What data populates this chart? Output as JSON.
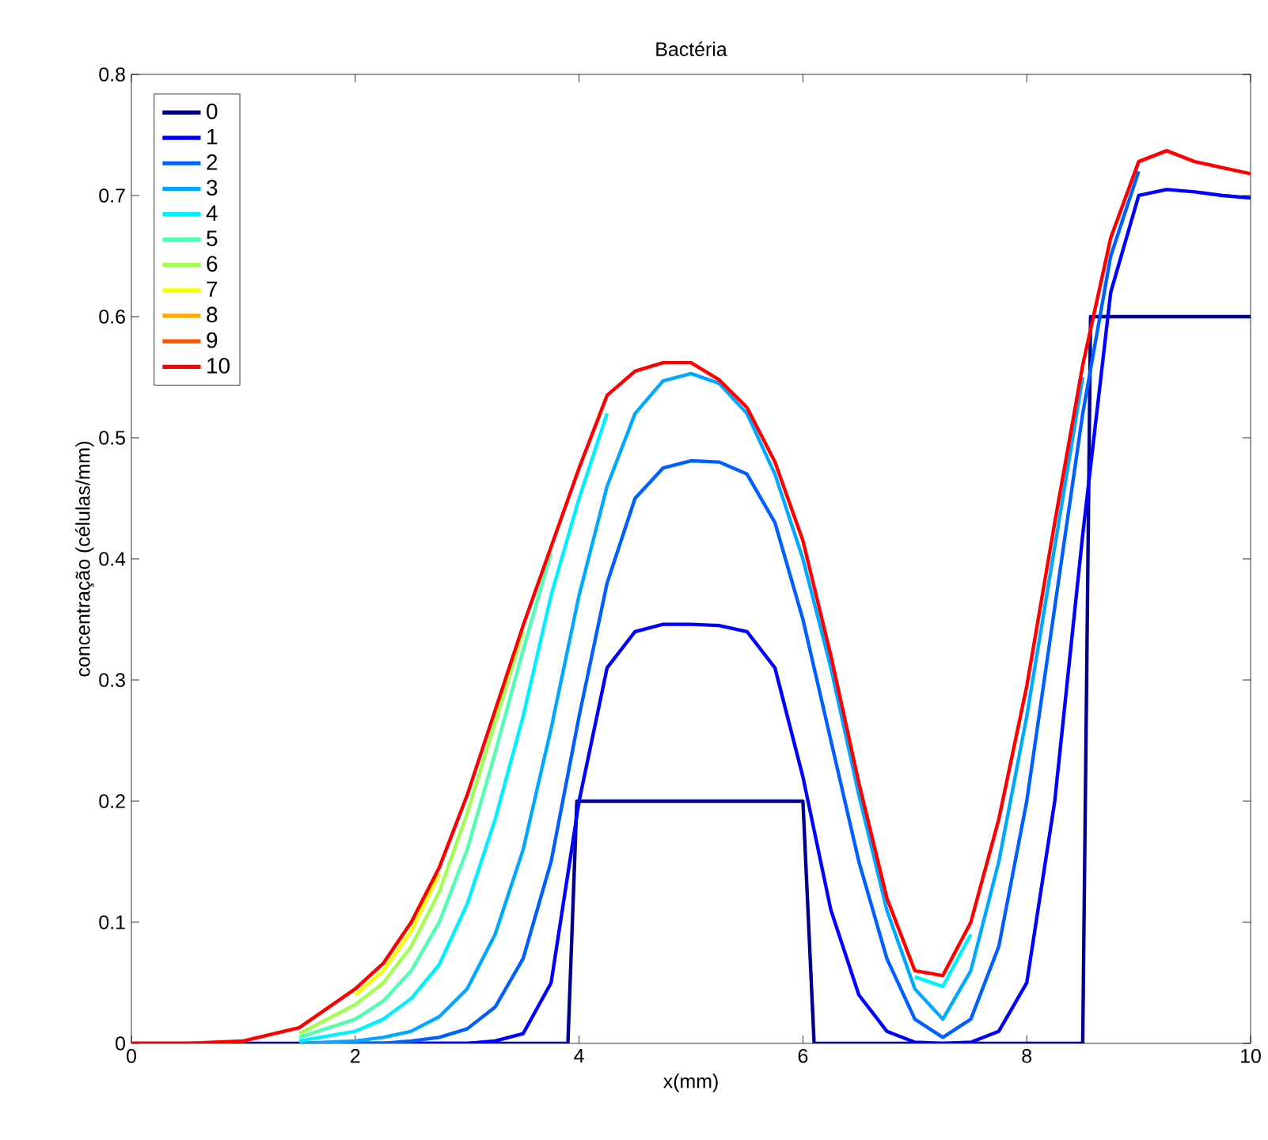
{
  "chart_data": {
    "type": "line",
    "title": "Bactéria",
    "xlabel": "x(mm)",
    "ylabel": "concentração (células/mm)",
    "xlim": [
      0,
      10
    ],
    "ylim": [
      0,
      0.8
    ],
    "xticks": [
      0,
      2,
      4,
      6,
      8,
      10
    ],
    "yticks": [
      0,
      0.1,
      0.2,
      0.3,
      0.4,
      0.5,
      0.6,
      0.7,
      0.8
    ],
    "legend": "top left",
    "grid": false,
    "x": [
      0,
      0.5,
      1,
      1.5,
      2,
      2.25,
      2.5,
      2.75,
      3,
      3.25,
      3.5,
      3.75,
      4,
      4.25,
      4.5,
      4.75,
      5,
      5.25,
      5.5,
      5.75,
      6,
      6.25,
      6.5,
      6.75,
      7,
      7.25,
      7.5,
      7.75,
      8,
      8.25,
      8.5,
      8.75,
      9,
      9.25,
      9.5,
      9.75,
      10
    ],
    "series": [
      {
        "name": "0",
        "color": "#00008f",
        "x": [
          0,
          3.9,
          3.98,
          6.0,
          6.1,
          8.5,
          8.57,
          10
        ],
        "values": [
          0,
          0,
          0.2,
          0.2,
          0,
          0,
          0.6,
          0.6
        ]
      },
      {
        "name": "1",
        "color": "#0000ff",
        "values": [
          null,
          null,
          null,
          0,
          0,
          0,
          0,
          0,
          0,
          0.002,
          0.008,
          0.05,
          0.2,
          0.31,
          0.34,
          0.346,
          0.346,
          0.345,
          0.34,
          0.31,
          0.22,
          0.11,
          0.04,
          0.01,
          0.001,
          0,
          0.001,
          0.01,
          0.05,
          0.2,
          0.42,
          0.62,
          0.7,
          0.705,
          0.703,
          0.7,
          0.698
        ]
      },
      {
        "name": "2",
        "color": "#0060ff",
        "values": [
          null,
          null,
          null,
          0,
          0,
          0,
          0.002,
          0.005,
          0.012,
          0.03,
          0.07,
          0.15,
          0.27,
          0.38,
          0.45,
          0.475,
          0.481,
          0.48,
          0.47,
          0.43,
          0.35,
          0.25,
          0.15,
          0.07,
          0.02,
          0.005,
          0.02,
          0.08,
          0.2,
          0.36,
          0.52,
          0.65,
          0.72,
          null,
          null,
          null,
          null
        ]
      },
      {
        "name": "3",
        "color": "#00a8ff",
        "values": [
          null,
          null,
          null,
          0,
          0.002,
          0.005,
          0.01,
          0.022,
          0.045,
          0.09,
          0.16,
          0.26,
          0.37,
          0.46,
          0.52,
          0.547,
          0.553,
          0.545,
          0.52,
          0.47,
          0.4,
          0.31,
          0.205,
          0.11,
          0.045,
          0.02,
          0.06,
          0.15,
          0.27,
          0.41,
          0.55,
          null,
          null,
          null,
          null,
          null,
          null
        ]
      },
      {
        "name": "4",
        "color": "#00f0ff",
        "values": [
          null,
          null,
          null,
          0.002,
          0.01,
          0.02,
          0.037,
          0.065,
          0.115,
          0.185,
          0.27,
          0.37,
          0.45,
          0.52,
          null,
          null,
          null,
          null,
          null,
          null,
          null,
          null,
          null,
          null,
          0.055,
          0.047,
          0.09,
          null,
          null,
          null,
          null,
          null,
          null,
          null,
          null,
          null,
          null
        ]
      },
      {
        "name": "5",
        "color": "#50ffb0",
        "values": [
          null,
          null,
          null,
          0.005,
          0.02,
          0.035,
          0.06,
          0.1,
          0.16,
          0.24,
          0.325,
          0.405,
          null,
          null,
          null,
          null,
          null,
          null,
          null,
          null,
          null,
          null,
          null,
          null,
          null,
          null,
          null,
          null,
          null,
          null,
          null,
          null,
          null,
          null,
          null,
          null,
          null
        ]
      },
      {
        "name": "6",
        "color": "#a0ff50",
        "values": [
          null,
          null,
          null,
          0.008,
          0.032,
          0.05,
          0.08,
          0.125,
          0.19,
          0.265,
          0.34,
          null,
          null,
          null,
          null,
          null,
          null,
          null,
          null,
          null,
          null,
          null,
          null,
          null,
          null,
          null,
          null,
          null,
          null,
          null,
          null,
          null,
          null,
          null,
          null,
          null,
          null
        ]
      },
      {
        "name": "7",
        "color": "#f8ff00",
        "values": [
          null,
          null,
          null,
          null,
          0.04,
          0.06,
          0.093,
          0.14,
          null,
          null,
          null,
          null,
          null,
          null,
          null,
          null,
          null,
          null,
          null,
          null,
          null,
          null,
          null,
          null,
          null,
          null,
          null,
          null,
          null,
          null,
          null,
          null,
          null,
          null,
          null,
          null,
          null
        ]
      },
      {
        "name": "8",
        "color": "#ffa800",
        "values": [
          null,
          null,
          null,
          null,
          null,
          null,
          null,
          null,
          null,
          null,
          null,
          null,
          null,
          null,
          null,
          null,
          null,
          null,
          null,
          null,
          null,
          null,
          null,
          null,
          null,
          null,
          null,
          null,
          null,
          null,
          null,
          null,
          null,
          null,
          null,
          null,
          null
        ]
      },
      {
        "name": "9",
        "color": "#ff5800",
        "values": [
          null,
          null,
          null,
          null,
          null,
          null,
          null,
          null,
          null,
          null,
          null,
          null,
          null,
          null,
          null,
          null,
          null,
          null,
          null,
          null,
          null,
          null,
          null,
          null,
          null,
          null,
          null,
          null,
          null,
          null,
          null,
          null,
          null,
          null,
          null,
          null,
          null
        ]
      },
      {
        "name": "10",
        "color": "#ff0000",
        "values": [
          0,
          0,
          0.002,
          0.013,
          0.045,
          0.066,
          0.1,
          0.145,
          0.205,
          0.275,
          0.345,
          0.41,
          0.475,
          0.535,
          0.555,
          0.562,
          0.562,
          0.548,
          0.525,
          0.48,
          0.415,
          0.32,
          0.215,
          0.12,
          0.06,
          0.056,
          0.1,
          0.185,
          0.295,
          0.43,
          0.56,
          0.665,
          0.728,
          0.737,
          0.728,
          0.723,
          0.718
        ]
      }
    ]
  }
}
